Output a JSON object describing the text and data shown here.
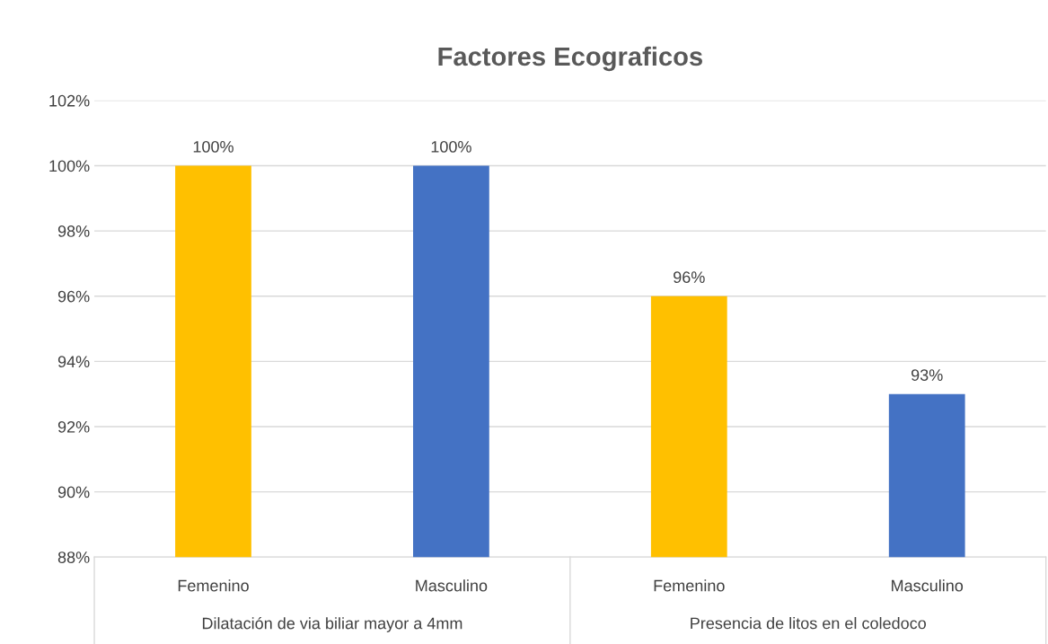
{
  "chart_data": {
    "type": "bar",
    "title": "Factores Ecograficos",
    "categories": [
      "Femenino",
      "Masculino",
      "Femenino",
      "Masculino"
    ],
    "values": [
      100,
      100,
      96,
      93
    ],
    "colors": [
      "#ffc000",
      "#4472c4",
      "#ffc000",
      "#4472c4"
    ],
    "value_labels": [
      "100%",
      "100%",
      "96%",
      "93%"
    ],
    "ylim": [
      88,
      102
    ],
    "yticks": [
      {
        "value": 88,
        "label": "88%"
      },
      {
        "value": 90,
        "label": "90%"
      },
      {
        "value": 92,
        "label": "92%"
      },
      {
        "value": 94,
        "label": "94%"
      },
      {
        "value": 96,
        "label": "96%"
      },
      {
        "value": 98,
        "label": "98%"
      },
      {
        "value": 100,
        "label": "100%"
      },
      {
        "value": 102,
        "label": "102%"
      }
    ],
    "grid": "y",
    "annotations": [
      "Dilatación de via biliar mayor a 4mm",
      "Presencia de litos en el coledoco"
    ]
  }
}
